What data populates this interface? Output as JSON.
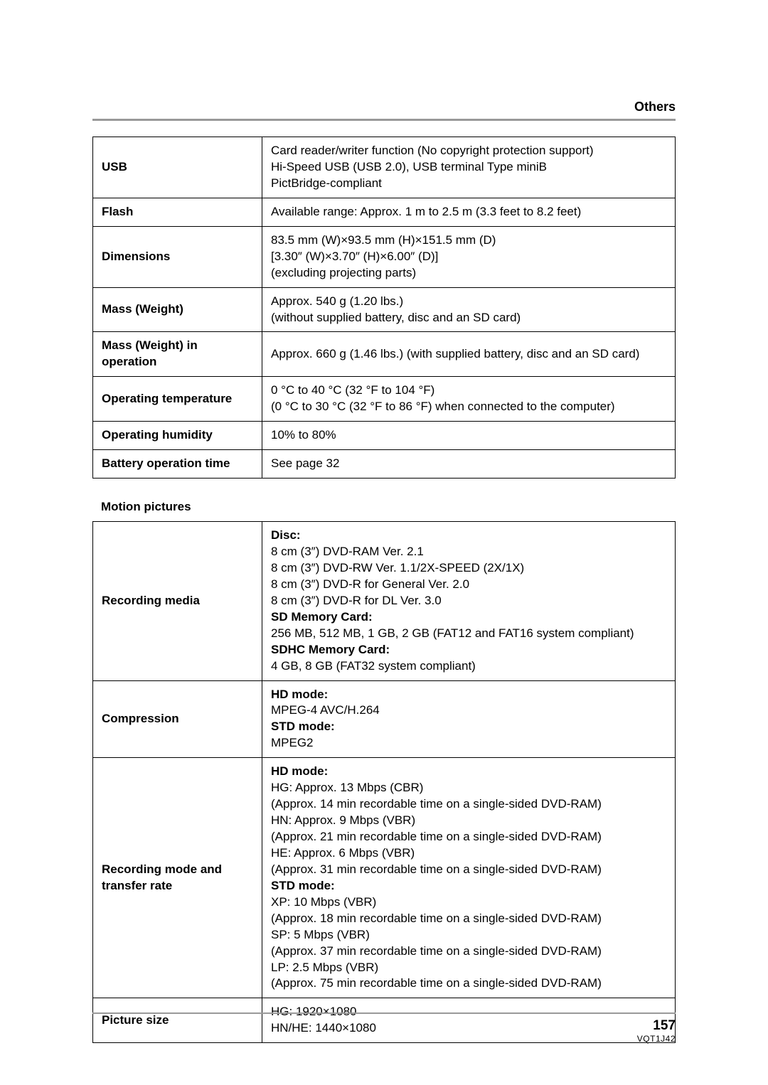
{
  "header": {
    "section": "Others"
  },
  "table1": {
    "rows": [
      {
        "label": "USB",
        "value_html": "Card reader/writer function (No copyright protection support)<br>Hi-Speed USB (USB 2.0), USB terminal Type miniB<br>PictBridge-compliant"
      },
      {
        "label": "Flash",
        "value_html": "Available range: Approx. 1 m to 2.5 m (3.3 feet to 8.2 feet)"
      },
      {
        "label": "Dimensions",
        "value_html": "83.5 mm (W)×93.5 mm (H)×151.5 mm (D)<br>[3.30″ (W)×3.70″ (H)×6.00″ (D)]<br>(excluding projecting parts)"
      },
      {
        "label": "Mass (Weight)",
        "value_html": "Approx. 540 g (1.20 lbs.)<br>(without supplied battery, disc and an SD card)"
      },
      {
        "label": "Mass (Weight) in operation",
        "value_html": "Approx. 660 g (1.46 lbs.) (with supplied battery, disc and an SD card)"
      },
      {
        "label": "Operating temperature",
        "value_html": "0 °C to 40 °C (32 °F to 104 °F)<br>(0 °C to 30 °C (32 °F to 86 °F) when connected to the computer)"
      },
      {
        "label": "Operating humidity",
        "value_html": "10% to 80%"
      },
      {
        "label": "Battery operation time",
        "value_html": "See page 32"
      }
    ]
  },
  "subhead1": "Motion pictures",
  "table2": {
    "rows": [
      {
        "label": "Recording media",
        "value_html": "<span class=\"bold\">Disc:</span><br>8 cm (3″) DVD-RAM Ver. 2.1<br>8 cm (3″) DVD-RW Ver. 1.1/2X-SPEED (2X/1X)<br>8 cm (3″) DVD-R for General Ver. 2.0<br>8 cm (3″) DVD-R for DL Ver. 3.0<br><span class=\"bold\">SD Memory Card:</span><br>256 MB, 512 MB, 1 GB, 2 GB (FAT12 and FAT16 system compliant)<br><span class=\"bold\">SDHC Memory Card:</span><br>4 GB, 8 GB (FAT32 system compliant)"
      },
      {
        "label": "Compression",
        "value_html": "<span class=\"bold\">HD mode:</span><br>MPEG-4 AVC/H.264<br><span class=\"bold\">STD mode:</span><br>MPEG2"
      },
      {
        "label": "Recording mode and transfer rate",
        "value_html": "<span class=\"bold\">HD mode:</span><br>HG: Approx. 13 Mbps (CBR)<br>(Approx. 14 min recordable time on a single-sided DVD-RAM)<br>HN: Approx. 9 Mbps (VBR)<br>(Approx. 21 min recordable time on a single-sided DVD-RAM)<br>HE: Approx. 6 Mbps (VBR)<br>(Approx. 31 min recordable time on a single-sided DVD-RAM)<br><span class=\"bold\">STD mode:</span><br>XP: 10 Mbps (VBR)<br>(Approx. 18 min recordable time on a single-sided DVD-RAM)<br>SP: 5 Mbps (VBR)<br>(Approx. 37 min recordable time on a single-sided DVD-RAM)<br>LP: 2.5 Mbps (VBR)<br>(Approx. 75 min recordable time on a single-sided DVD-RAM)"
      },
      {
        "label": "Picture size",
        "value_html": "HG: 1920×1080<br>HN/HE: 1440×1080"
      }
    ]
  },
  "footer": {
    "page": "157",
    "doc_id": "VQT1J42"
  },
  "colors": {
    "rule": "#999999",
    "border": "#000000",
    "text": "#000000",
    "bg": "#ffffff"
  }
}
